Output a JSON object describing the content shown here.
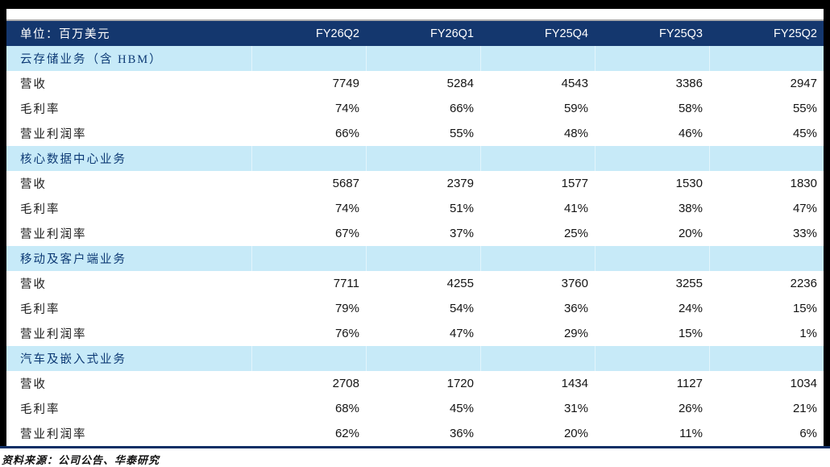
{
  "table": {
    "unit_label": "单位：百万美元",
    "columns": [
      "FY26Q2",
      "FY26Q1",
      "FY25Q4",
      "FY25Q3",
      "FY25Q2"
    ],
    "sections": [
      {
        "name": "云存储业务（含 HBM）",
        "rows": [
          {
            "label": "营收",
            "values": [
              "7749",
              "5284",
              "4543",
              "3386",
              "2947"
            ]
          },
          {
            "label": "毛利率",
            "values": [
              "74%",
              "66%",
              "59%",
              "58%",
              "55%"
            ]
          },
          {
            "label": "营业利润率",
            "values": [
              "66%",
              "55%",
              "48%",
              "46%",
              "45%"
            ]
          }
        ]
      },
      {
        "name": "核心数据中心业务",
        "rows": [
          {
            "label": "营收",
            "values": [
              "5687",
              "2379",
              "1577",
              "1530",
              "1830"
            ]
          },
          {
            "label": "毛利率",
            "values": [
              "74%",
              "51%",
              "41%",
              "38%",
              "47%"
            ]
          },
          {
            "label": "营业利润率",
            "values": [
              "67%",
              "37%",
              "25%",
              "20%",
              "33%"
            ]
          }
        ]
      },
      {
        "name": "移动及客户端业务",
        "rows": [
          {
            "label": "营收",
            "values": [
              "7711",
              "4255",
              "3760",
              "3255",
              "2236"
            ]
          },
          {
            "label": "毛利率",
            "values": [
              "79%",
              "54%",
              "36%",
              "24%",
              "15%"
            ]
          },
          {
            "label": "营业利润率",
            "values": [
              "76%",
              "47%",
              "29%",
              "15%",
              "1%"
            ]
          }
        ]
      },
      {
        "name": "汽车及嵌入式业务",
        "rows": [
          {
            "label": "营收",
            "values": [
              "2708",
              "1720",
              "1434",
              "1127",
              "1034"
            ]
          },
          {
            "label": "毛利率",
            "values": [
              "68%",
              "45%",
              "31%",
              "26%",
              "21%"
            ]
          },
          {
            "label": "营业利润率",
            "values": [
              "62%",
              "36%",
              "20%",
              "11%",
              "6%"
            ]
          }
        ]
      }
    ]
  },
  "footer": {
    "source_note": "资料来源：公司公告、华泰研究"
  },
  "colors": {
    "header_bg": "#14376E",
    "section_bg": "#C7EAF8",
    "section_text": "#0D3A75",
    "bottom_rule": "#0D2F66",
    "top_rule": "#ADADAD",
    "frame_black": "#000000"
  }
}
